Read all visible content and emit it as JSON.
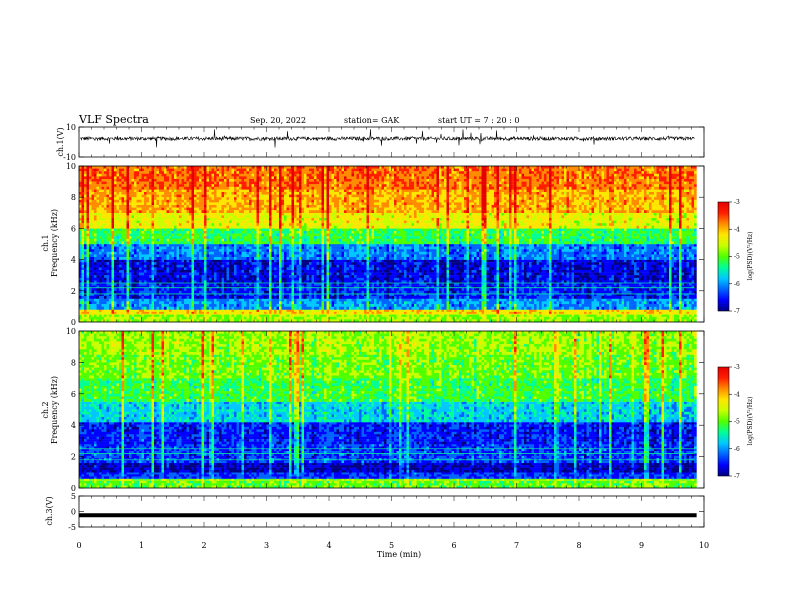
{
  "header": {
    "title": "VLF Spectra",
    "date": "Sep. 20, 2022",
    "station": "station= GAK",
    "start": "start  UT  =   7 : 20 : 0"
  },
  "colors": {
    "spectrum": [
      "#000080",
      "#0000ff",
      "#0064ff",
      "#00c8ff",
      "#00ff96",
      "#50ff00",
      "#c8ff00",
      "#ffe600",
      "#ff8c00",
      "#ff1e00",
      "#e60000"
    ]
  },
  "chart_data": [
    {
      "type": "line",
      "name": "ch1-waveform",
      "ylabel": "ch.1(V)",
      "ylim": [
        -10,
        10
      ],
      "yticks": [
        "10",
        "-10"
      ],
      "series_description_values": {
        "baseline": 2.3,
        "noise_amplitude": 1.2,
        "spike_amplitude": 5.5
      }
    },
    {
      "type": "heatmap",
      "name": "ch1-spectrogram",
      "ylabel": "ch.1\nFrequency  (kHz)",
      "ylabel_lines": [
        "ch.1",
        "Frequency  (kHz)"
      ],
      "ylim": [
        0,
        10
      ],
      "yticks": [
        "0",
        "2",
        "4",
        "6",
        "8",
        "10"
      ],
      "colorbar": {
        "label": "log(PSD)(V²/Hz)",
        "range": [
          -7,
          -3
        ],
        "ticks": [
          "-7",
          "-6",
          "-5",
          "-4",
          "-3"
        ]
      },
      "bands": [
        {
          "from": 0.0,
          "to": 0.5,
          "level": 5.5
        },
        {
          "from": 0.5,
          "to": 0.8,
          "level": 7.0
        },
        {
          "from": 0.8,
          "to": 1.5,
          "level": 2.5
        },
        {
          "from": 1.5,
          "to": 2.5,
          "level": 1.2
        },
        {
          "from": 2.5,
          "to": 4.0,
          "level": 0.8
        },
        {
          "from": 4.0,
          "to": 5.0,
          "level": 2.2
        },
        {
          "from": 5.0,
          "to": 6.0,
          "level": 4.5
        },
        {
          "from": 6.0,
          "to": 7.0,
          "level": 6.5
        },
        {
          "from": 7.0,
          "to": 8.5,
          "level": 7.6
        },
        {
          "from": 8.5,
          "to": 10.0,
          "level": 8.3
        }
      ]
    },
    {
      "type": "heatmap",
      "name": "ch2-spectrogram",
      "ylabel": "ch.2\nFrequency  (kHz)",
      "ylabel_lines": [
        "ch.2",
        "Frequency  (kHz)"
      ],
      "ylim": [
        0,
        10
      ],
      "yticks": [
        "0",
        "2",
        "4",
        "6",
        "8",
        "10"
      ],
      "colorbar": {
        "label": "log(PSD)(V²/Hz)",
        "range": [
          -7,
          -3
        ],
        "ticks": [
          "-7",
          "-6",
          "-5",
          "-4",
          "-3"
        ]
      },
      "bands": [
        {
          "from": 0.0,
          "to": 0.6,
          "level": 5.0
        },
        {
          "from": 0.6,
          "to": 1.0,
          "level": 1.5
        },
        {
          "from": 1.0,
          "to": 1.6,
          "level": 0.4
        },
        {
          "from": 1.6,
          "to": 2.8,
          "level": 1.5
        },
        {
          "from": 2.8,
          "to": 4.2,
          "level": 1.2
        },
        {
          "from": 4.2,
          "to": 5.5,
          "level": 3.2
        },
        {
          "from": 5.5,
          "to": 7.0,
          "level": 4.6
        },
        {
          "from": 7.0,
          "to": 8.5,
          "level": 5.2
        },
        {
          "from": 8.5,
          "to": 10.0,
          "level": 5.6
        }
      ]
    },
    {
      "type": "line",
      "name": "ch3-waveform",
      "ylabel": "ch.3(V)",
      "ylim": [
        -5,
        5
      ],
      "yticks": [
        "5",
        "0",
        "-5"
      ],
      "series_description_values": {
        "baseline": -1.2
      }
    }
  ],
  "xaxis": {
    "label": "Time  (min)",
    "range": [
      0,
      10
    ],
    "ticks": [
      "0",
      "1",
      "2",
      "3",
      "4",
      "5",
      "6",
      "7",
      "8",
      "9",
      "10"
    ],
    "data_end": 9.85
  }
}
